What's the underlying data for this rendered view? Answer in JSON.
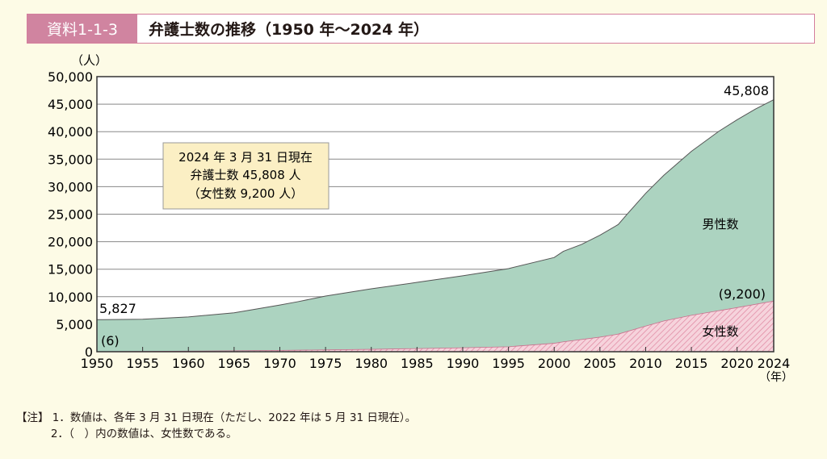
{
  "header": {
    "label": "資料1-1-3",
    "title": "弁護士数の推移（1950 年〜2024 年）"
  },
  "chart_data": {
    "type": "area",
    "stacked": true,
    "ylabel": "（人）",
    "xlabel": "（年）",
    "ylim": [
      0,
      50000
    ],
    "xlim": [
      1950,
      2024
    ],
    "yticks": [
      "0",
      "5,000",
      "10,000",
      "15,000",
      "20,000",
      "25,000",
      "30,000",
      "35,000",
      "40,000",
      "45,000",
      "50,000"
    ],
    "xticks": [
      "1950",
      "1955",
      "1960",
      "1965",
      "1970",
      "1975",
      "1980",
      "1985",
      "1990",
      "1995",
      "2000",
      "2005",
      "2010",
      "2015",
      "2020",
      "2024"
    ],
    "grid": true,
    "series": [
      {
        "name": "男性数",
        "color": "#acd3c0",
        "total_points": [
          [
            1950,
            5827
          ],
          [
            1955,
            5899
          ],
          [
            1960,
            6321
          ],
          [
            1965,
            7082
          ],
          [
            1970,
            8478
          ],
          [
            1972,
            9100
          ],
          [
            1975,
            10115
          ],
          [
            1980,
            11441
          ],
          [
            1985,
            12604
          ],
          [
            1990,
            13800
          ],
          [
            1995,
            15108
          ],
          [
            2000,
            17126
          ],
          [
            2001,
            18243
          ],
          [
            2003,
            19508
          ],
          [
            2005,
            21185
          ],
          [
            2007,
            23119
          ],
          [
            2008,
            25041
          ],
          [
            2010,
            28789
          ],
          [
            2012,
            32088
          ],
          [
            2015,
            36415
          ],
          [
            2018,
            40066
          ],
          [
            2020,
            42164
          ],
          [
            2022,
            44101
          ],
          [
            2024,
            45808
          ]
        ]
      },
      {
        "name": "女性数",
        "color": "#f2bccb",
        "points": [
          [
            1950,
            6
          ],
          [
            1960,
            100
          ],
          [
            1970,
            240
          ],
          [
            1980,
            430
          ],
          [
            1990,
            720
          ],
          [
            1995,
            900
          ],
          [
            2000,
            1530
          ],
          [
            2001,
            1800
          ],
          [
            2005,
            2648
          ],
          [
            2007,
            3199
          ],
          [
            2010,
            4660
          ],
          [
            2012,
            5595
          ],
          [
            2015,
            6618
          ],
          [
            2020,
            8017
          ],
          [
            2024,
            9200
          ]
        ]
      }
    ],
    "annotations": {
      "start_total": "5,827",
      "start_women": "(6)",
      "end_total": "45,808",
      "end_women": "(9,200)"
    },
    "infobox": [
      "2024 年 3 月 31 日現在",
      "弁護士数 45,808 人",
      "（女性数 9,200 人）"
    ]
  },
  "notes": [
    "【注】 1．数値は、各年 3 月 31 日現在（ただし、2022 年は 5 月 31 日現在）。",
    "          2．（   ）内の数値は、女性数である。"
  ]
}
